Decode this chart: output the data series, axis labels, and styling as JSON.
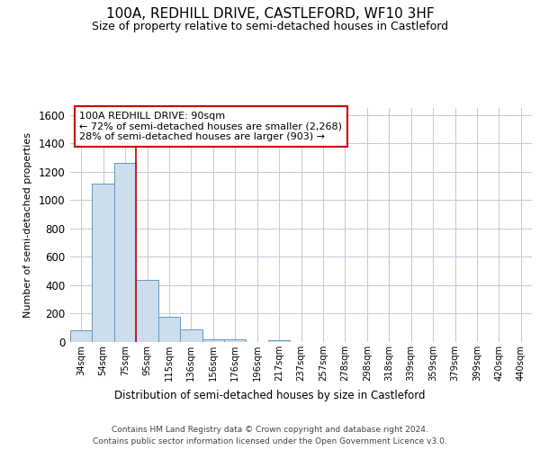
{
  "title": "100A, REDHILL DRIVE, CASTLEFORD, WF10 3HF",
  "subtitle": "Size of property relative to semi-detached houses in Castleford",
  "xlabel": "Distribution of semi-detached houses by size in Castleford",
  "ylabel": "Number of semi-detached properties",
  "categories": [
    "34sqm",
    "54sqm",
    "75sqm",
    "95sqm",
    "115sqm",
    "136sqm",
    "156sqm",
    "176sqm",
    "196sqm",
    "217sqm",
    "237sqm",
    "257sqm",
    "278sqm",
    "298sqm",
    "318sqm",
    "339sqm",
    "359sqm",
    "379sqm",
    "399sqm",
    "420sqm",
    "440sqm"
  ],
  "values": [
    85,
    1120,
    1260,
    435,
    175,
    90,
    22,
    22,
    0,
    15,
    0,
    0,
    0,
    0,
    0,
    0,
    0,
    0,
    0,
    0,
    0
  ],
  "bar_color": "#ccdded",
  "bar_edge_color": "#6699bb",
  "bar_edge_width": 0.7,
  "grid_color": "#c8c8d8",
  "background_color": "#ffffff",
  "red_line_color": "#cc0000",
  "red_line_x": 2.5,
  "annotation_text": "100A REDHILL DRIVE: 90sqm\n← 72% of semi-detached houses are smaller (2,268)\n28% of semi-detached houses are larger (903) →",
  "annotation_box_color": "#ffffff",
  "annotation_box_edge": "#cc0000",
  "ylim": [
    0,
    1650
  ],
  "yticks": [
    0,
    200,
    400,
    600,
    800,
    1000,
    1200,
    1400,
    1600
  ],
  "footer_line1": "Contains HM Land Registry data © Crown copyright and database right 2024.",
  "footer_line2": "Contains public sector information licensed under the Open Government Licence v3.0."
}
